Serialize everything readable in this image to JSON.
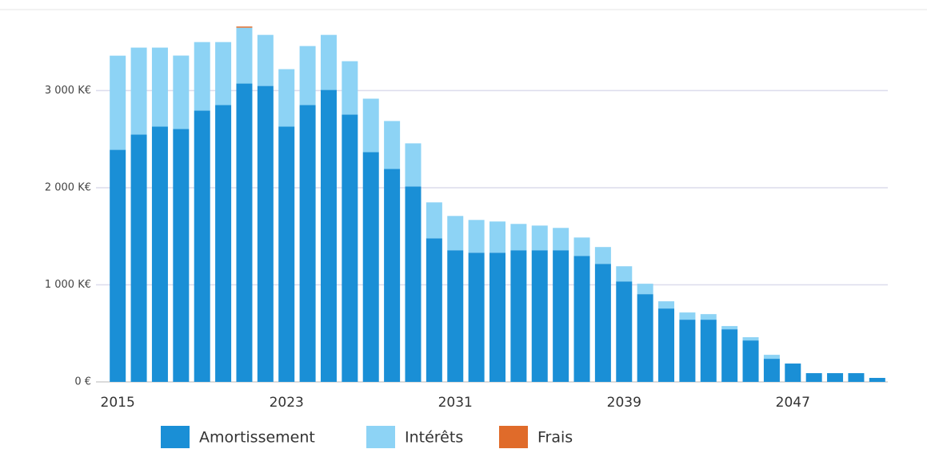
{
  "chart_data": {
    "type": "bar",
    "stacked": true,
    "categories": [
      "2015",
      null,
      null,
      null,
      null,
      null,
      null,
      null,
      "2023",
      null,
      null,
      null,
      null,
      null,
      null,
      null,
      "2031",
      null,
      null,
      null,
      null,
      null,
      null,
      null,
      "2039",
      null,
      null,
      null,
      null,
      null,
      null,
      null,
      "2047",
      null,
      null,
      null,
      null
    ],
    "series": [
      {
        "name": "Amortissement",
        "color": "#1a8fd6",
        "values": [
          2390,
          2547,
          2629,
          2605,
          2794,
          2851,
          3073,
          3048,
          2629,
          2851,
          3007,
          2753,
          2366,
          2194,
          2013,
          1479,
          1356,
          1331,
          1331,
          1356,
          1356,
          1356,
          1298,
          1216,
          1035,
          904,
          756,
          641,
          641,
          542,
          427,
          238,
          189,
          90,
          90,
          90,
          41
        ]
      },
      {
        "name": "Intérêts",
        "color": "#8dd3f5",
        "values": [
          970,
          896,
          814,
          756,
          706,
          649,
          575,
          526,
          592,
          608,
          567,
          550,
          551,
          493,
          444,
          370,
          353,
          337,
          321,
          271,
          254,
          230,
          189,
          173,
          156,
          107,
          74,
          74,
          57,
          33,
          33,
          41,
          0,
          0,
          0,
          0,
          0
        ]
      },
      {
        "name": "Frais",
        "color": "#e06b2a",
        "values": [
          0,
          0,
          0,
          0,
          0,
          0,
          12,
          0,
          0,
          0,
          0,
          0,
          0,
          0,
          0,
          0,
          0,
          0,
          0,
          0,
          0,
          0,
          0,
          0,
          0,
          0,
          0,
          0,
          0,
          0,
          0,
          0,
          0,
          0,
          0,
          0,
          0
        ]
      }
    ],
    "ylim": [
      0,
      3670
    ],
    "yticks": [
      {
        "value": 0,
        "label": "0 €"
      },
      {
        "value": 1000,
        "label": "1 000 K€"
      },
      {
        "value": 2000,
        "label": "2 000 K€"
      },
      {
        "value": 3000,
        "label": "3 000 K€"
      }
    ],
    "grid": true,
    "legend": "bottom"
  }
}
